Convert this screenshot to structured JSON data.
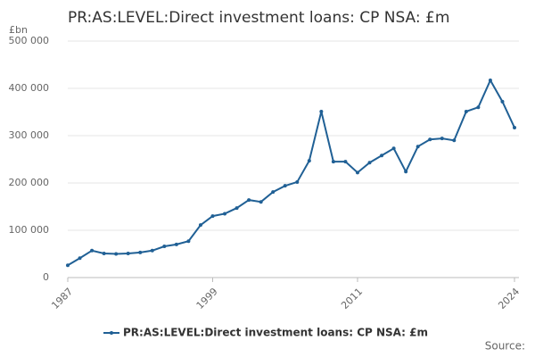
{
  "chart_data": {
    "type": "line",
    "title": "PR:AS:LEVEL:Direct investment loans: CP NSA: £m",
    "y_unit": "£bn",
    "source": "Source:",
    "x": [
      1987,
      1988,
      1989,
      1990,
      1991,
      1992,
      1993,
      1994,
      1995,
      1996,
      1997,
      1998,
      1999,
      2000,
      2001,
      2002,
      2003,
      2004,
      2005,
      2006,
      2007,
      2008,
      2009,
      2010,
      2011,
      2012,
      2013,
      2014,
      2015,
      2016,
      2017,
      2018,
      2019,
      2020,
      2021,
      2022,
      2023,
      2024
    ],
    "series": [
      {
        "name": "PR:AS:LEVEL:Direct investment loans: CP NSA: £m",
        "color": "#206095",
        "values": [
          26000,
          41000,
          57000,
          51000,
          50000,
          51000,
          53000,
          57000,
          66000,
          70000,
          77000,
          111000,
          130000,
          135000,
          147000,
          164000,
          160000,
          181000,
          194000,
          202000,
          247000,
          351000,
          245000,
          245000,
          222000,
          243000,
          258000,
          273000,
          224000,
          277000,
          292000,
          294000,
          290000,
          351000,
          360000,
          417000,
          372000,
          317000
        ]
      }
    ],
    "xlim": [
      1987,
      2024
    ],
    "xticks": [
      1987,
      1999,
      2011,
      2024
    ],
    "ylim": [
      0,
      500000
    ],
    "yticks": [
      0,
      {
        "value": 100000,
        "label": "100 000"
      },
      {
        "value": 200000,
        "label": "200 000"
      },
      {
        "value": 300000,
        "label": "300 000"
      },
      {
        "value": 400000,
        "label": "400 000"
      },
      {
        "value": 500000,
        "label": "500 000"
      }
    ],
    "grid": true,
    "legend": "bottom"
  }
}
